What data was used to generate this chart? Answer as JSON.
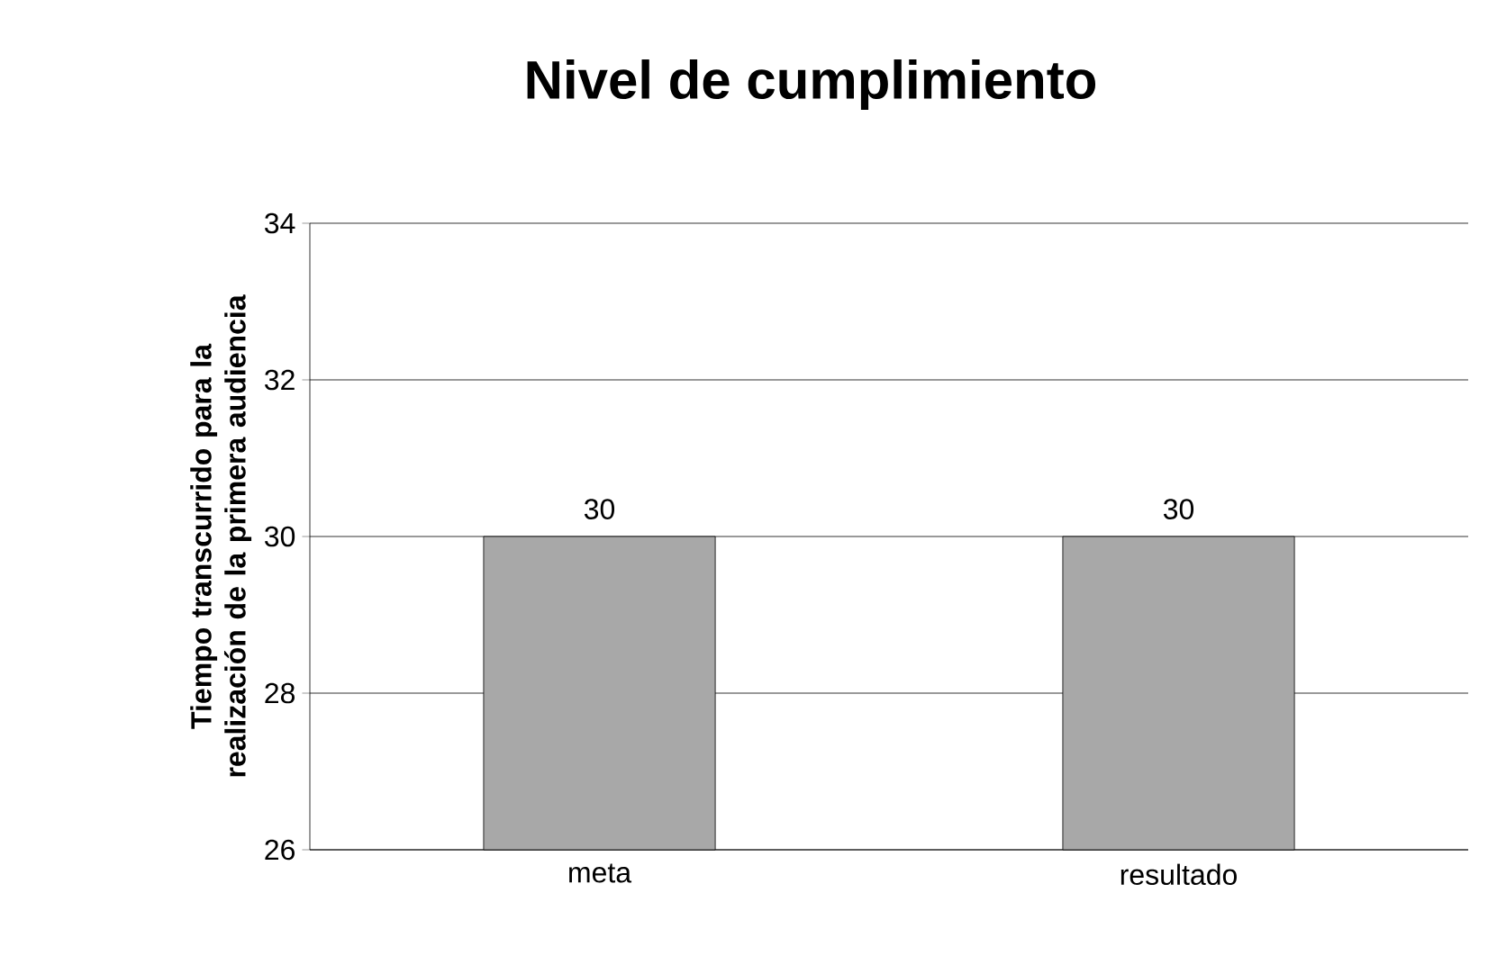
{
  "chart_data": {
    "type": "bar",
    "title": "Nivel de cumplimiento",
    "ylabel": "Tiempo transcurrido para la realización de la primera audiencia",
    "categories": [
      "meta",
      "resultado"
    ],
    "values": [
      30,
      30
    ],
    "color": "#a8a8a8",
    "ylim": [
      26,
      34
    ],
    "yticks": [
      26,
      28,
      30,
      32,
      34
    ],
    "grid": "y",
    "data_labels": true
  }
}
